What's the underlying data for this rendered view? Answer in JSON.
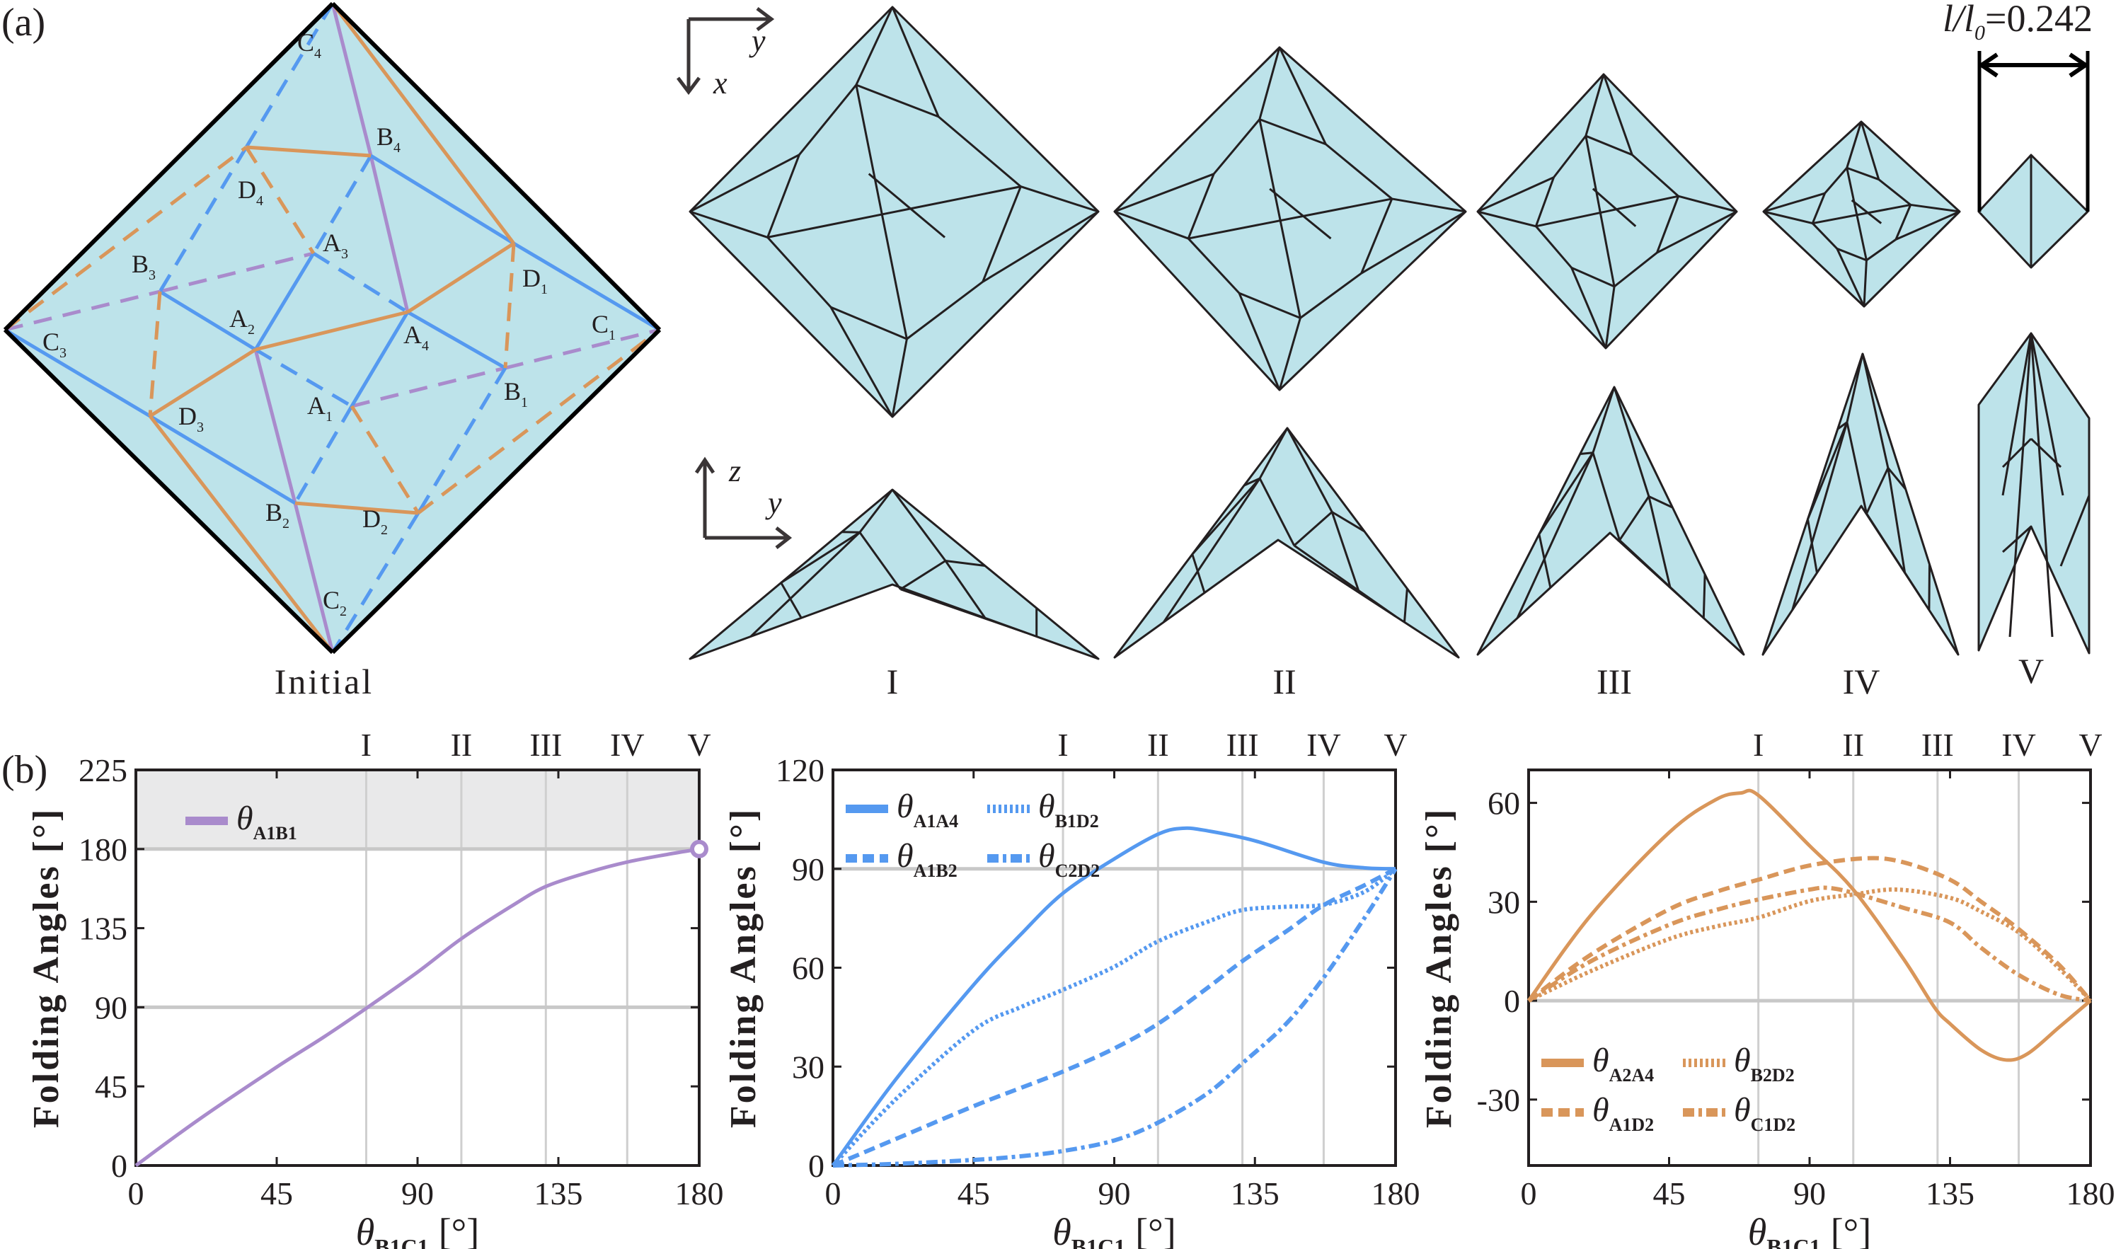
{
  "panel_a": {
    "label": "(a)",
    "initial_label": "Initial",
    "stage_labels": [
      "I",
      "II",
      "III",
      "IV",
      "V"
    ],
    "top_axes": {
      "h": "y",
      "v": "x"
    },
    "side_axes": {
      "v": "z",
      "h": "y"
    },
    "ratio_label": {
      "var": "l/l",
      "sub": "0",
      "value": "=0.242"
    },
    "colors": {
      "paper": "#bde3ea",
      "edge": "#000000",
      "valley_blue": "#5599f0",
      "mountain_orange": "#d9965a",
      "purple": "#a98bcc",
      "fold_line": "#231f20"
    },
    "crease_nodes": [
      "A1",
      "A2",
      "A3",
      "A4",
      "B1",
      "B2",
      "B3",
      "B4",
      "C1",
      "C2",
      "C3",
      "C4",
      "D1",
      "D2",
      "D3",
      "D4"
    ]
  },
  "panel_b": {
    "label": "(b)"
  },
  "chart_data": [
    {
      "type": "line",
      "title": "",
      "xlabel": "θB1C1 [°]",
      "xlabel_symbol": "θ",
      "xlabel_sub": "B1C1",
      "xlabel_unit": "[°]",
      "ylabel": "Folding Angles [°]",
      "xlim": [
        0,
        180
      ],
      "ylim": [
        0,
        225
      ],
      "xticks": [
        0,
        45,
        90,
        135,
        180
      ],
      "yticks": [
        0,
        45,
        90,
        135,
        180,
        225
      ],
      "ref_hlines": [
        90,
        180
      ],
      "shaded_band": [
        180,
        225
      ],
      "stage_lines": {
        "labels": [
          "I",
          "II",
          "III",
          "IV",
          "V"
        ],
        "x": [
          73.6,
          104,
          131,
          157,
          180
        ]
      },
      "legend_position": "top-left",
      "color": "#a98bcc",
      "series": [
        {
          "name": "θA1B1",
          "symbol": "θ",
          "sub": "A1B1",
          "style": "solid",
          "x": [
            0,
            20,
            45,
            60,
            73.6,
            90,
            104,
            120,
            131,
            145,
            157,
            170,
            180
          ],
          "y": [
            0,
            26,
            56,
            73,
            89.4,
            110,
            129,
            147.5,
            158.7,
            167,
            172.6,
            177,
            180
          ],
          "end_marker": "open-circle"
        }
      ]
    },
    {
      "type": "line",
      "xlabel": "θB1C1 [°]",
      "xlabel_symbol": "θ",
      "xlabel_sub": "B1C1",
      "xlabel_unit": "[°]",
      "ylabel": "Folding Angles [°]",
      "xlim": [
        0,
        180
      ],
      "ylim": [
        0,
        120
      ],
      "xticks": [
        0,
        45,
        90,
        135,
        180
      ],
      "yticks": [
        0,
        30,
        60,
        90,
        120
      ],
      "ref_hlines": [
        90
      ],
      "stage_lines": {
        "labels": [
          "I",
          "II",
          "III",
          "IV",
          "V"
        ],
        "x": [
          73.6,
          104,
          131,
          157,
          180
        ]
      },
      "legend_position": "top-left",
      "color": "#5599f0",
      "series": [
        {
          "name": "θA1A4",
          "symbol": "θ",
          "sub": "A1A4",
          "style": "solid",
          "x": [
            0,
            20,
            45,
            60,
            73.6,
            90,
            104,
            112,
            120,
            135,
            157,
            170,
            180
          ],
          "y": [
            0,
            26,
            54.8,
            70,
            82.6,
            93,
            100.5,
            102.3,
            101.5,
            98.5,
            92,
            90.3,
            90
          ]
        },
        {
          "name": "θB1D2",
          "symbol": "θ",
          "sub": "B1D2",
          "style": "dotted",
          "x": [
            0,
            20,
            45,
            60,
            73.6,
            90,
            104,
            120,
            131,
            145,
            157,
            170,
            180
          ],
          "y": [
            0,
            20,
            41,
            48,
            53.3,
            60.3,
            68,
            74,
            77.5,
            78.5,
            79.1,
            83,
            90
          ]
        },
        {
          "name": "θA1B2",
          "symbol": "θ",
          "sub": "A1B2",
          "style": "dashed",
          "x": [
            0,
            20,
            45,
            60,
            73.6,
            90,
            104,
            120,
            131,
            145,
            157,
            170,
            180
          ],
          "y": [
            0,
            8,
            18,
            23.5,
            28.5,
            35.5,
            43,
            54,
            62,
            71,
            79,
            85,
            90
          ]
        },
        {
          "name": "θC2D2",
          "symbol": "θ",
          "sub": "C2D2",
          "style": "dashdot",
          "x": [
            0,
            20,
            45,
            60,
            73.6,
            90,
            104,
            120,
            131,
            145,
            157,
            170,
            180
          ],
          "y": [
            0,
            0.5,
            1.7,
            2.8,
            4.4,
            7.6,
            13,
            22,
            31,
            43,
            57,
            75,
            90
          ]
        }
      ]
    },
    {
      "type": "line",
      "xlabel": "θB1C1 [°]",
      "xlabel_symbol": "θ",
      "xlabel_sub": "B1C1",
      "xlabel_unit": "[°]",
      "ylabel": "Folding Angles [°]",
      "xlim": [
        0,
        180
      ],
      "ylim": [
        -50,
        70
      ],
      "xticks": [
        0,
        45,
        90,
        135,
        180
      ],
      "yticks": [
        -30,
        0,
        30,
        60
      ],
      "ref_hlines": [
        0
      ],
      "stage_lines": {
        "labels": [
          "I",
          "II",
          "III",
          "IV",
          "V"
        ],
        "x": [
          73.6,
          104,
          131,
          157,
          180
        ]
      },
      "legend_position": "bottom-left",
      "color": "#d9965a",
      "series": [
        {
          "name": "θA2A4",
          "symbol": "θ",
          "sub": "A2A4",
          "style": "solid",
          "x": [
            0,
            20,
            45,
            60,
            68,
            73.6,
            90,
            104,
            120,
            130,
            135,
            145,
            153,
            160,
            170,
            180
          ],
          "y": [
            0,
            26,
            51,
            61,
            63,
            62.3,
            47,
            33.7,
            12.8,
            -2,
            -7,
            -15,
            -18,
            -16,
            -8,
            0
          ]
        },
        {
          "name": "θB2D2",
          "symbol": "θ",
          "sub": "B2D2",
          "style": "dotted",
          "x": [
            0,
            20,
            45,
            60,
            73.6,
            90,
            104,
            118,
            135,
            145,
            157,
            170,
            180
          ],
          "y": [
            0,
            9,
            18.7,
            22.5,
            25.2,
            30.2,
            32.2,
            33.7,
            31.2,
            27,
            20.7,
            9.8,
            0
          ]
        },
        {
          "name": "θA1D2",
          "symbol": "θ",
          "sub": "A1D2",
          "style": "dashed",
          "x": [
            0,
            20,
            45,
            60,
            73.6,
            90,
            108,
            120,
            135,
            145,
            157,
            170,
            180
          ],
          "y": [
            0,
            14,
            27.7,
            33,
            36.7,
            41,
            43.2,
            42,
            36.7,
            30,
            21.7,
            10.8,
            0
          ]
        },
        {
          "name": "θC1D2",
          "symbol": "θ",
          "sub": "C1D2",
          "style": "dashdot",
          "x": [
            0,
            20,
            45,
            60,
            73.6,
            90,
            96,
            104,
            120,
            135,
            145,
            157,
            170,
            180
          ],
          "y": [
            0,
            12,
            23,
            27.5,
            30.7,
            33.7,
            34.2,
            32.7,
            28.2,
            23.7,
            16,
            7.8,
            1.8,
            0
          ]
        }
      ]
    }
  ]
}
